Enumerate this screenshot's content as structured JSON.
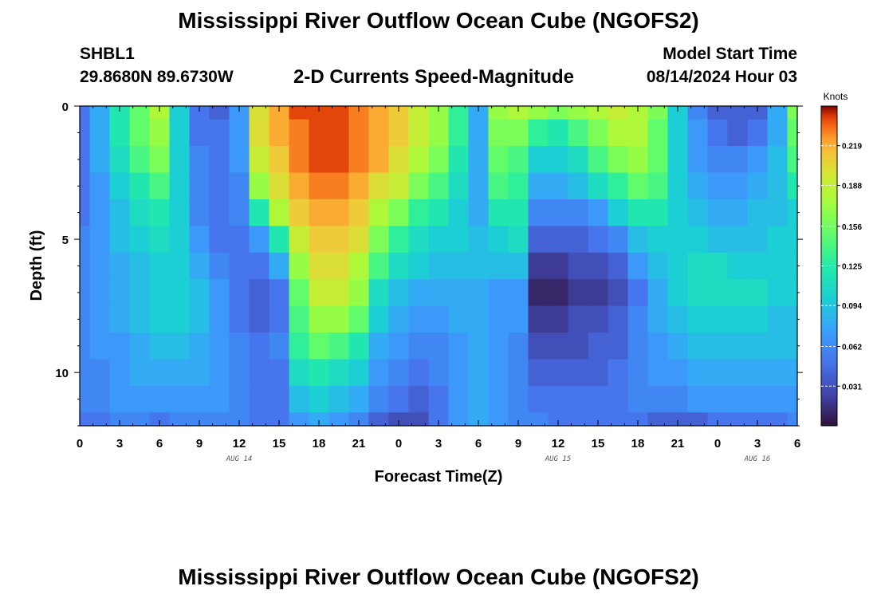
{
  "header": {
    "title_top": "Mississippi River Outflow Ocean Cube (NGOFS2)",
    "title_bottom": "Mississippi River Outflow Ocean Cube (NGOFS2)",
    "station_id": "SHBL1",
    "station_coords": "29.8680N  89.6730W",
    "plot_title": "2-D Currents Speed-Magnitude",
    "model_start_label": "Model Start Time",
    "model_start_value": "08/14/2024 Hour 03"
  },
  "chart_data": {
    "type": "heatmap",
    "title": "2-D Currents Speed-Magnitude",
    "xlabel": "Forecast Time(Z)",
    "ylabel": "Depth (ft)",
    "x_tick_labels": [
      "0",
      "3",
      "6",
      "9",
      "12",
      "15",
      "18",
      "21",
      "0",
      "3",
      "6",
      "9",
      "12",
      "15",
      "18",
      "21",
      "0",
      "3",
      "6"
    ],
    "x_range_hours": [
      0,
      54
    ],
    "date_labels": [
      {
        "label": "AUG 14",
        "hour": 12
      },
      {
        "label": "AUG 15",
        "hour": 36
      },
      {
        "label": "AUG 16",
        "hour": 51
      }
    ],
    "y_tick_labels": [
      "0",
      "5",
      "10"
    ],
    "y_range_ft": [
      0,
      12
    ],
    "colorbar": {
      "unit": "Knots",
      "range": [
        0.0,
        0.25
      ],
      "tick_labels": [
        "0.219",
        "0.188",
        "0.156",
        "0.125",
        "0.094",
        "0.062",
        "0.031"
      ],
      "tick_values": [
        0.219,
        0.188,
        0.156,
        0.125,
        0.094,
        0.062,
        0.031
      ]
    },
    "time_hours": [
      0,
      1.5,
      3,
      4.5,
      6,
      7.5,
      9,
      10.5,
      12,
      13.5,
      15,
      16.5,
      18,
      19.5,
      21,
      22.5,
      24,
      25.5,
      27,
      28.5,
      30,
      31.5,
      33,
      34.5,
      36,
      37.5,
      39,
      40.5,
      42,
      43.5,
      45,
      46.5,
      48,
      49.5,
      51,
      52.5,
      54
    ],
    "depth_ft": [
      0,
      1,
      2,
      3,
      4,
      5,
      6,
      7,
      8,
      9,
      10,
      11,
      12
    ],
    "speed_knots": [
      [
        0.05,
        0.08,
        0.12,
        0.15,
        0.18,
        0.1,
        0.05,
        0.04,
        0.07,
        0.2,
        0.22,
        0.24,
        0.24,
        0.24,
        0.23,
        0.22,
        0.21,
        0.19,
        0.17,
        0.13,
        0.08,
        0.17,
        0.18,
        0.17,
        0.16,
        0.17,
        0.18,
        0.19,
        0.18,
        0.16,
        0.1,
        0.06,
        0.04,
        0.04,
        0.04,
        0.08,
        0.16
      ],
      [
        0.05,
        0.08,
        0.12,
        0.15,
        0.17,
        0.1,
        0.05,
        0.05,
        0.07,
        0.2,
        0.22,
        0.23,
        0.24,
        0.24,
        0.23,
        0.22,
        0.21,
        0.19,
        0.17,
        0.13,
        0.08,
        0.16,
        0.16,
        0.13,
        0.12,
        0.14,
        0.16,
        0.18,
        0.18,
        0.15,
        0.1,
        0.07,
        0.05,
        0.04,
        0.05,
        0.08,
        0.15
      ],
      [
        0.05,
        0.08,
        0.11,
        0.14,
        0.16,
        0.1,
        0.06,
        0.05,
        0.07,
        0.19,
        0.21,
        0.23,
        0.24,
        0.24,
        0.23,
        0.22,
        0.2,
        0.18,
        0.16,
        0.12,
        0.08,
        0.15,
        0.14,
        0.1,
        0.1,
        0.11,
        0.14,
        0.16,
        0.17,
        0.15,
        0.1,
        0.07,
        0.06,
        0.06,
        0.07,
        0.09,
        0.14
      ],
      [
        0.05,
        0.07,
        0.1,
        0.12,
        0.14,
        0.1,
        0.06,
        0.05,
        0.06,
        0.17,
        0.2,
        0.22,
        0.23,
        0.23,
        0.22,
        0.2,
        0.19,
        0.16,
        0.14,
        0.11,
        0.08,
        0.14,
        0.13,
        0.08,
        0.08,
        0.09,
        0.11,
        0.13,
        0.15,
        0.14,
        0.1,
        0.08,
        0.07,
        0.07,
        0.08,
        0.09,
        0.12
      ],
      [
        0.05,
        0.07,
        0.09,
        0.11,
        0.12,
        0.1,
        0.06,
        0.05,
        0.06,
        0.12,
        0.18,
        0.21,
        0.22,
        0.22,
        0.21,
        0.18,
        0.16,
        0.13,
        0.12,
        0.1,
        0.08,
        0.12,
        0.12,
        0.06,
        0.06,
        0.06,
        0.07,
        0.1,
        0.12,
        0.12,
        0.1,
        0.09,
        0.08,
        0.08,
        0.09,
        0.09,
        0.1
      ],
      [
        0.06,
        0.07,
        0.09,
        0.1,
        0.11,
        0.1,
        0.07,
        0.05,
        0.05,
        0.07,
        0.12,
        0.19,
        0.21,
        0.21,
        0.2,
        0.16,
        0.13,
        0.11,
        0.1,
        0.1,
        0.09,
        0.1,
        0.11,
        0.04,
        0.04,
        0.04,
        0.05,
        0.06,
        0.09,
        0.1,
        0.1,
        0.1,
        0.09,
        0.09,
        0.09,
        0.1,
        0.1
      ],
      [
        0.06,
        0.07,
        0.08,
        0.09,
        0.1,
        0.1,
        0.08,
        0.06,
        0.05,
        0.05,
        0.08,
        0.17,
        0.2,
        0.2,
        0.18,
        0.14,
        0.11,
        0.1,
        0.09,
        0.09,
        0.09,
        0.09,
        0.09,
        0.02,
        0.02,
        0.03,
        0.03,
        0.04,
        0.07,
        0.09,
        0.1,
        0.11,
        0.11,
        0.1,
        0.1,
        0.1,
        0.1
      ],
      [
        0.06,
        0.07,
        0.08,
        0.09,
        0.1,
        0.1,
        0.09,
        0.07,
        0.05,
        0.04,
        0.05,
        0.15,
        0.19,
        0.19,
        0.17,
        0.11,
        0.09,
        0.08,
        0.08,
        0.08,
        0.08,
        0.07,
        0.07,
        0.01,
        0.01,
        0.02,
        0.02,
        0.03,
        0.05,
        0.08,
        0.1,
        0.11,
        0.11,
        0.11,
        0.11,
        0.1,
        0.1
      ],
      [
        0.06,
        0.07,
        0.08,
        0.09,
        0.1,
        0.1,
        0.09,
        0.07,
        0.05,
        0.04,
        0.05,
        0.14,
        0.17,
        0.17,
        0.15,
        0.1,
        0.08,
        0.07,
        0.07,
        0.08,
        0.08,
        0.07,
        0.07,
        0.02,
        0.02,
        0.03,
        0.03,
        0.04,
        0.06,
        0.08,
        0.09,
        0.1,
        0.1,
        0.1,
        0.1,
        0.09,
        0.09
      ],
      [
        0.06,
        0.07,
        0.07,
        0.08,
        0.09,
        0.09,
        0.08,
        0.07,
        0.06,
        0.05,
        0.06,
        0.13,
        0.15,
        0.14,
        0.12,
        0.08,
        0.07,
        0.06,
        0.06,
        0.07,
        0.08,
        0.07,
        0.06,
        0.03,
        0.03,
        0.03,
        0.04,
        0.04,
        0.06,
        0.07,
        0.08,
        0.09,
        0.09,
        0.09,
        0.09,
        0.09,
        0.09
      ],
      [
        0.06,
        0.06,
        0.07,
        0.08,
        0.08,
        0.08,
        0.08,
        0.07,
        0.06,
        0.05,
        0.05,
        0.11,
        0.12,
        0.11,
        0.1,
        0.07,
        0.06,
        0.05,
        0.06,
        0.07,
        0.08,
        0.07,
        0.06,
        0.04,
        0.04,
        0.04,
        0.04,
        0.05,
        0.06,
        0.07,
        0.07,
        0.08,
        0.08,
        0.08,
        0.08,
        0.08,
        0.08
      ],
      [
        0.06,
        0.06,
        0.07,
        0.07,
        0.07,
        0.07,
        0.07,
        0.07,
        0.06,
        0.05,
        0.05,
        0.09,
        0.1,
        0.09,
        0.08,
        0.06,
        0.05,
        0.04,
        0.05,
        0.07,
        0.08,
        0.07,
        0.06,
        0.05,
        0.05,
        0.05,
        0.05,
        0.05,
        0.06,
        0.06,
        0.06,
        0.07,
        0.07,
        0.07,
        0.07,
        0.07,
        0.07
      ],
      [
        0.05,
        0.05,
        0.06,
        0.06,
        0.05,
        0.06,
        0.06,
        0.06,
        0.06,
        0.05,
        0.05,
        0.07,
        0.08,
        0.07,
        0.06,
        0.04,
        0.03,
        0.03,
        0.05,
        0.07,
        0.08,
        0.07,
        0.06,
        0.06,
        0.05,
        0.05,
        0.05,
        0.05,
        0.05,
        0.04,
        0.04,
        0.04,
        0.05,
        0.05,
        0.05,
        0.05,
        0.06
      ]
    ]
  }
}
